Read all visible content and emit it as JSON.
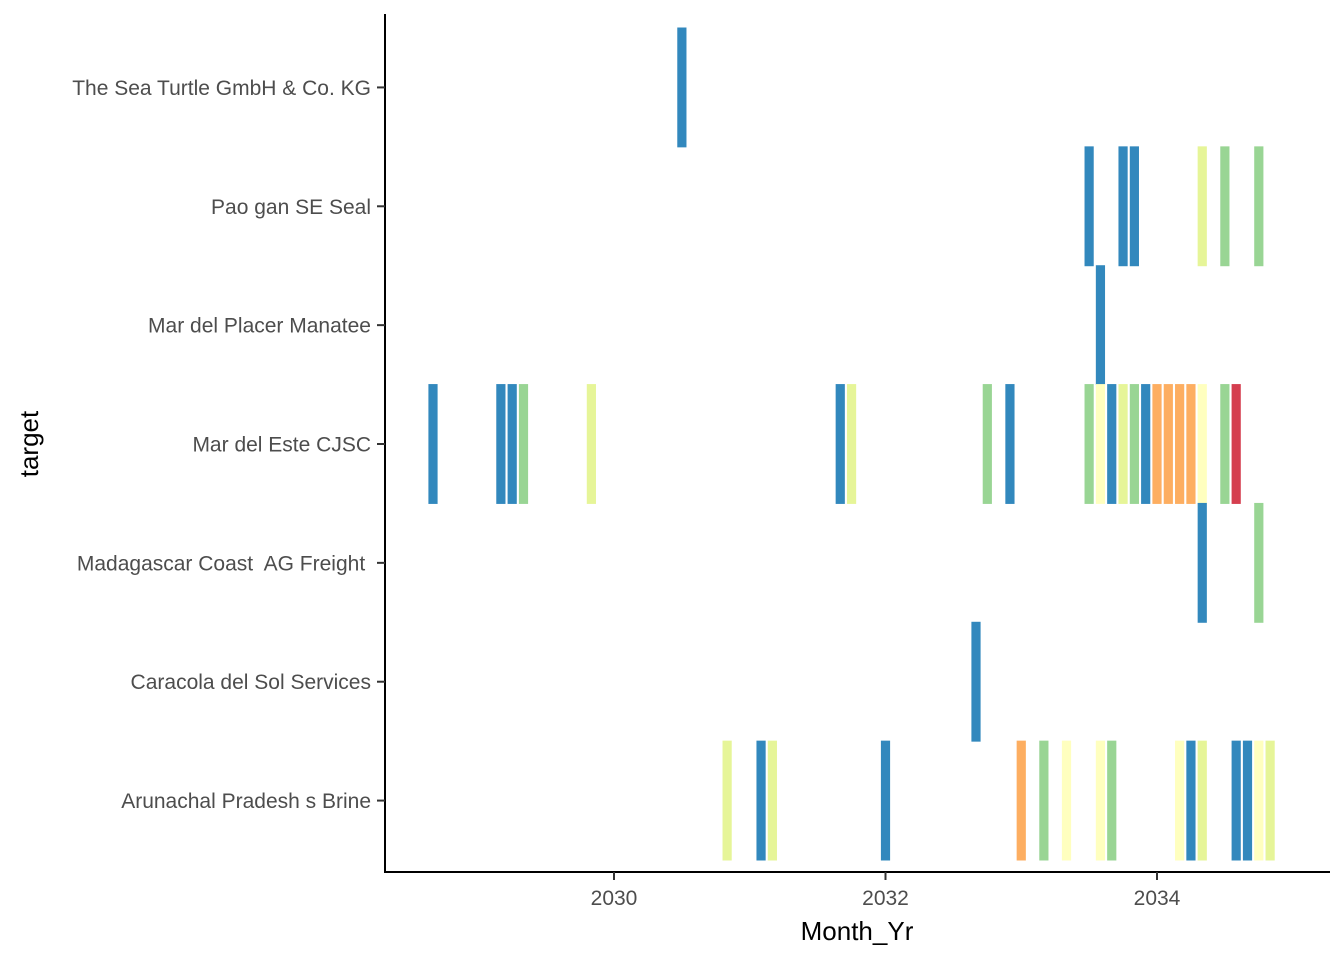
{
  "chart_data": {
    "type": "heatmap",
    "title": "",
    "xlabel": "Month_Yr",
    "ylabel": "target",
    "xlim": [
      2028.4,
      2035.35
    ],
    "x_ticks": [
      {
        "value": 2030,
        "label": "2030"
      },
      {
        "value": 2032,
        "label": "2032"
      },
      {
        "value": 2034,
        "label": "2034"
      }
    ],
    "categories": [
      "The Sea Turtle GmbH & Co. KG",
      "Pao gan SE Seal",
      "Mar del Placer Manatee",
      "Mar del Este CJSC",
      "Madagascar Coast  AG Freight ",
      "Caracola del Sol Services",
      "Arunachal Pradesh s Brine"
    ],
    "colors": {
      "blue": "#3288bd",
      "green": "#99d594",
      "lime": "#e6f598",
      "yellow": "#ffffbf",
      "orange": "#fdae61",
      "red": "#d53e4f"
    },
    "grid": false,
    "legend": "none",
    "series": [
      {
        "target": "The Sea Turtle GmbH & Co. KG",
        "x": [
          "2030-07"
        ],
        "color": [
          "blue"
        ]
      },
      {
        "target": "Pao gan SE Seal",
        "x": [
          "2033-07",
          "2033-10",
          "2033-11",
          "2034-05",
          "2034-07",
          "2034-10"
        ],
        "color": [
          "blue",
          "blue",
          "blue",
          "lime",
          "green",
          "green"
        ]
      },
      {
        "target": "Mar del Placer Manatee",
        "x": [
          "2033-08"
        ],
        "color": [
          "blue"
        ]
      },
      {
        "target": "Mar del Este CJSC",
        "x": [
          "2028-09",
          "2029-03",
          "2029-04",
          "2029-05",
          "2029-11",
          "2031-09",
          "2031-10",
          "2032-10",
          "2032-12",
          "2033-07",
          "2033-08",
          "2033-09",
          "2033-10",
          "2033-11",
          "2033-12",
          "2034-01",
          "2034-02",
          "2034-03",
          "2034-04",
          "2034-05",
          "2034-07",
          "2034-08"
        ],
        "color": [
          "blue",
          "blue",
          "blue",
          "green",
          "lime",
          "blue",
          "lime",
          "green",
          "blue",
          "green",
          "yellow",
          "blue",
          "lime",
          "green",
          "blue",
          "orange",
          "orange",
          "orange",
          "orange",
          "yellow",
          "green",
          "red"
        ]
      },
      {
        "target": "Madagascar Coast  AG Freight ",
        "x": [
          "2034-05",
          "2034-10"
        ],
        "color": [
          "blue",
          "green"
        ]
      },
      {
        "target": "Caracola del Sol Services",
        "x": [
          "2032-09"
        ],
        "color": [
          "blue"
        ]
      },
      {
        "target": "Arunachal Pradesh s Brine",
        "x": [
          "2030-11",
          "2031-02",
          "2031-03",
          "2032-01",
          "2033-01",
          "2033-03",
          "2033-05",
          "2033-08",
          "2033-09",
          "2034-03",
          "2034-04",
          "2034-05",
          "2034-08",
          "2034-09",
          "2034-10",
          "2034-11"
        ],
        "color": [
          "lime",
          "blue",
          "lime",
          "blue",
          "orange",
          "green",
          "yellow",
          "yellow",
          "green",
          "yellow",
          "blue",
          "lime",
          "blue",
          "blue",
          "yellow",
          "lime"
        ]
      }
    ]
  }
}
